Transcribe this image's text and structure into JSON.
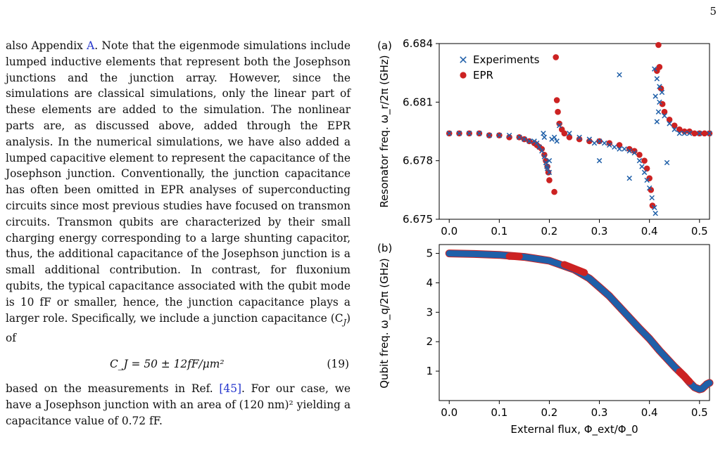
{
  "page_number": "5",
  "text": {
    "para1_before_link": "also Appendix ",
    "para1_link": "A",
    "para1_after_link": ". Note that the eigenmode simulations include lumped inductive elements that represent both the Josephson junctions and the junction array. However, since the simulations are classical simulations, only the linear part of these elements are added to the simulation. The nonlinear parts are, as discussed above, added through the EPR analysis. In the numerical simulations, we have also added a lumped capacitive element to represent the capacitance of the Josephson junction. Conventionally, the junction capacitance has often been omitted in EPR analyses of superconducting circuits since most previous studies have focused on transmon circuits. Transmon qubits are characterized by their small charging energy corresponding to a large shunting capacitor, thus, the additional capacitance of the Josephson junction is a small additional contribution. In contrast, for fluxonium qubits, the typical capacitance associated with the qubit mode is 10 fF or smaller, hence, the junction capacitance plays a larger role. Specifically, we include a junction capacitance (C",
    "para1_sub": "J",
    "para1_end": ") of",
    "equation": "C_J = 50 ± 12fF/μm²",
    "equation_number": "(19)",
    "para2_before_link": "based on the measurements in Ref. ",
    "para2_link": "[45]",
    "para2_after_link": ". For our case, we have a Josephson junction with an area of (120 nm)² yielding a capacitance value of 0.72 fF."
  },
  "figure": {
    "colors": {
      "experiments": "#1f5fa8",
      "epr": "#cc2222"
    },
    "chart_data": [
      {
        "type": "scatter",
        "panel_label": "(a)",
        "ylabel": "Resonator freq. ω_r/2π (GHz)",
        "xlim": [
          -0.02,
          0.52
        ],
        "ylim": [
          6.675,
          6.684
        ],
        "xticks": [
          "0.0",
          "0.1",
          "0.2",
          "0.3",
          "0.4",
          "0.5"
        ],
        "yticks": [
          "6.675",
          "6.678",
          "6.681",
          "6.684"
        ],
        "legend": {
          "position": "top-left",
          "entries": [
            "Experiments",
            "EPR"
          ]
        },
        "series": [
          {
            "name": "Experiments",
            "marker": "x",
            "x": [
              0.0,
              0.02,
              0.04,
              0.06,
              0.08,
              0.1,
              0.12,
              0.14,
              0.15,
              0.16,
              0.17,
              0.175,
              0.18,
              0.185,
              0.19,
              0.193,
              0.196,
              0.2,
              0.205,
              0.21,
              0.215,
              0.22,
              0.24,
              0.26,
              0.28,
              0.29,
              0.3,
              0.31,
              0.32,
              0.33,
              0.34,
              0.35,
              0.36,
              0.37,
              0.38,
              0.385,
              0.39,
              0.395,
              0.4,
              0.405,
              0.41,
              0.412,
              0.415,
              0.418,
              0.42,
              0.425,
              0.43,
              0.44,
              0.45,
              0.46,
              0.47,
              0.48,
              0.5,
              0.52,
              0.195,
              0.19,
              0.188,
              0.2,
              0.34,
              0.36,
              0.3,
              0.435,
              0.41,
              0.415,
              0.42,
              0.412
            ],
            "y": [
              6.6794,
              6.6794,
              6.6794,
              6.6794,
              6.6793,
              6.6793,
              6.6793,
              6.6792,
              6.6791,
              6.679,
              6.679,
              6.6789,
              6.6787,
              6.6785,
              6.6782,
              6.6779,
              6.6776,
              6.6774,
              6.6791,
              6.6792,
              6.679,
              6.6798,
              6.6794,
              6.6792,
              6.6791,
              6.6789,
              6.679,
              6.6789,
              6.6788,
              6.6787,
              6.6786,
              6.6786,
              6.6785,
              6.6784,
              6.678,
              6.6777,
              6.6774,
              6.677,
              6.6766,
              6.6761,
              6.6756,
              6.6753,
              6.68,
              6.6805,
              6.681,
              6.6815,
              6.6803,
              6.6799,
              6.6796,
              6.6794,
              6.6794,
              6.6794,
              6.6794,
              6.6794,
              6.6777,
              6.6792,
              6.6794,
              6.678,
              6.6824,
              6.6771,
              6.678,
              6.6779,
              6.6827,
              6.6822,
              6.6818,
              6.6813
            ]
          },
          {
            "name": "EPR",
            "marker": "o",
            "x": [
              0.0,
              0.02,
              0.04,
              0.06,
              0.08,
              0.1,
              0.12,
              0.14,
              0.15,
              0.16,
              0.17,
              0.175,
              0.18,
              0.185,
              0.19,
              0.193,
              0.196,
              0.198,
              0.2,
              0.21,
              0.213,
              0.215,
              0.217,
              0.22,
              0.225,
              0.23,
              0.24,
              0.26,
              0.28,
              0.3,
              0.32,
              0.34,
              0.36,
              0.37,
              0.38,
              0.39,
              0.395,
              0.4,
              0.403,
              0.406,
              0.415,
              0.418,
              0.42,
              0.423,
              0.426,
              0.43,
              0.44,
              0.45,
              0.46,
              0.47,
              0.48,
              0.49,
              0.5,
              0.51,
              0.52
            ],
            "y": [
              6.6794,
              6.6794,
              6.6794,
              6.6794,
              6.6793,
              6.6793,
              6.6792,
              6.6792,
              6.6791,
              6.679,
              6.6789,
              6.6788,
              6.6787,
              6.6786,
              6.6783,
              6.678,
              6.6777,
              6.6774,
              6.677,
              6.6764,
              6.6833,
              6.6811,
              6.6805,
              6.6799,
              6.6796,
              6.6794,
              6.6792,
              6.6791,
              6.679,
              6.679,
              6.6789,
              6.6788,
              6.6786,
              6.6785,
              6.6783,
              6.678,
              6.6776,
              6.6771,
              6.6765,
              6.6757,
              6.6826,
              6.6841,
              6.6828,
              6.6817,
              6.6809,
              6.6805,
              6.6801,
              6.6798,
              6.6796,
              6.6795,
              6.6795,
              6.6794,
              6.6794,
              6.6794,
              6.6794
            ]
          }
        ]
      },
      {
        "type": "line",
        "panel_label": "(b)",
        "xlabel": "External flux, Φ_ext/Φ_0",
        "ylabel": "Qubit freq. ω_q/2π (GHz)",
        "xlim": [
          -0.02,
          0.52
        ],
        "ylim": [
          0,
          5.3
        ],
        "xticks": [
          "0.0",
          "0.1",
          "0.2",
          "0.3",
          "0.4",
          "0.5"
        ],
        "yticks": [
          "1",
          "2",
          "3",
          "4",
          "5"
        ],
        "series": [
          {
            "name": "EPR",
            "x": [
              0.0,
              0.05,
              0.1,
              0.15,
              0.2,
              0.25,
              0.28,
              0.3,
              0.32,
              0.35,
              0.38,
              0.4,
              0.42,
              0.45,
              0.47,
              0.48,
              0.49,
              0.5,
              0.505,
              0.51,
              0.515,
              0.52
            ],
            "y": [
              5.0,
              4.98,
              4.95,
              4.88,
              4.75,
              4.45,
              4.15,
              3.85,
              3.55,
              3.0,
              2.45,
              2.1,
              1.7,
              1.15,
              0.82,
              0.62,
              0.45,
              0.38,
              0.4,
              0.48,
              0.56,
              0.6
            ]
          },
          {
            "name": "Experiments",
            "x": [
              0.0,
              0.05,
              0.1,
              0.15,
              0.2,
              0.25,
              0.28,
              0.3,
              0.32,
              0.35,
              0.38,
              0.4,
              0.42,
              0.45,
              0.47,
              0.48,
              0.49,
              0.5,
              0.505,
              0.51,
              0.515,
              0.52
            ],
            "y": [
              5.0,
              4.98,
              4.95,
              4.88,
              4.75,
              4.45,
              4.15,
              3.85,
              3.55,
              3.0,
              2.45,
              2.1,
              1.7,
              1.15,
              0.82,
              0.62,
              0.45,
              0.38,
              0.4,
              0.48,
              0.56,
              0.6
            ]
          }
        ],
        "highlights": [
          {
            "x": [
              0.12,
              0.14
            ],
            "y": [
              4.9,
              4.9
            ]
          },
          {
            "x": [
              0.23,
              0.27
            ],
            "y": [
              4.62,
              4.35
            ]
          },
          {
            "x": [
              0.46,
              0.48
            ],
            "y": [
              0.98,
              0.65
            ]
          }
        ]
      }
    ]
  }
}
